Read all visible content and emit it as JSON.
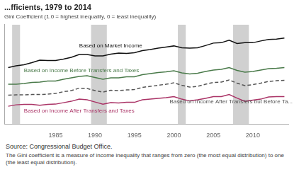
{
  "chart_data": {
    "type": "line",
    "title": "...fficients, 1979 to 2014",
    "subtitle": "Gini Coefficient (1.0 = highest inequality, 0 = least inequality)",
    "source": "Source: Congressional Budget Office.",
    "note": "The Gini coefficient is a measure of income inequality that ranges from zero (the most equal distribution) to one (the least equal distribution).",
    "x": [
      1979,
      1980,
      1981,
      1982,
      1983,
      1984,
      1985,
      1986,
      1987,
      1988,
      1989,
      1990,
      1991,
      1992,
      1993,
      1994,
      1995,
      1996,
      1997,
      1998,
      1999,
      2000,
      2001,
      2002,
      2003,
      2004,
      2005,
      2006,
      2007,
      2008,
      2009,
      2010,
      2011,
      2012,
      2013,
      2014
    ],
    "series": [
      {
        "color": "#111111",
        "line_style": "solid",
        "values": [
          0.479,
          0.484,
          0.487,
          0.493,
          0.5,
          0.499,
          0.499,
          0.503,
          0.508,
          0.516,
          0.516,
          0.512,
          0.512,
          0.517,
          0.52,
          0.519,
          0.521,
          0.527,
          0.53,
          0.534,
          0.537,
          0.54,
          0.535,
          0.534,
          0.535,
          0.541,
          0.548,
          0.549,
          0.556,
          0.547,
          0.549,
          0.549,
          0.554,
          0.558,
          0.559,
          0.562
        ]
      },
      {
        "color": "#4a7a4a",
        "line_style": "solid",
        "values": [
          0.432,
          0.432,
          0.434,
          0.437,
          0.438,
          0.441,
          0.441,
          0.446,
          0.45,
          0.454,
          0.456,
          0.451,
          0.446,
          0.45,
          0.45,
          0.453,
          0.453,
          0.459,
          0.462,
          0.465,
          0.467,
          0.47,
          0.464,
          0.461,
          0.463,
          0.468,
          0.472,
          0.474,
          0.479,
          0.471,
          0.466,
          0.468,
          0.472,
          0.476,
          0.477,
          0.479
        ]
      },
      {
        "color": "#aa3366",
        "line_style": "solid",
        "values": [
          0.37,
          0.374,
          0.375,
          0.375,
          0.373,
          0.375,
          0.376,
          0.38,
          0.384,
          0.39,
          0.388,
          0.382,
          0.376,
          0.38,
          0.379,
          0.381,
          0.381,
          0.388,
          0.39,
          0.392,
          0.394,
          0.397,
          0.39,
          0.385,
          0.388,
          0.392,
          0.397,
          0.397,
          0.403,
          0.393,
          0.384,
          0.387,
          0.39,
          0.396,
          0.397,
          0.397
        ]
      },
      {
        "color": "#555555",
        "line_style": "dashed",
        "values": [
          0.401,
          0.402,
          0.402,
          0.403,
          0.403,
          0.404,
          0.406,
          0.411,
          0.414,
          0.421,
          0.42,
          0.414,
          0.41,
          0.415,
          0.414,
          0.416,
          0.417,
          0.423,
          0.426,
          0.429,
          0.432,
          0.436,
          0.429,
          0.424,
          0.426,
          0.432,
          0.437,
          0.438,
          0.444,
          0.435,
          0.428,
          0.431,
          0.435,
          0.44,
          0.442,
          0.443
        ]
      }
    ],
    "recession_bands": {
      "color": "#d0d0d0",
      "ranges": [
        [
          1980,
          1980
        ],
        [
          1990,
          1991
        ],
        [
          2001,
          2001
        ],
        [
          2008,
          2009
        ]
      ]
    },
    "annotations": [
      {
        "text": "Based on Market Income",
        "x": 1988,
        "y": 0.533,
        "color": "#111111"
      },
      {
        "text": "Based on Income Before Transfers and Taxes",
        "x": 1981,
        "y": 0.463,
        "color": "#4a7a4a"
      },
      {
        "text": "Based on Income After Transfers and Taxes",
        "x": 1981,
        "y": 0.348,
        "color": "#aa3366"
      },
      {
        "text": "Based on Income After Transfers but Before Ta...",
        "x": 2003,
        "y": 0.374,
        "color": "#555555"
      }
    ],
    "xlim": [
      1978.5,
      2014.5
    ],
    "ylim": [
      0.32,
      0.6
    ],
    "xticks": [
      1985,
      1990,
      1995,
      2000,
      2005,
      2010
    ],
    "yticks": [],
    "grid": false,
    "tick_labels": "x"
  }
}
